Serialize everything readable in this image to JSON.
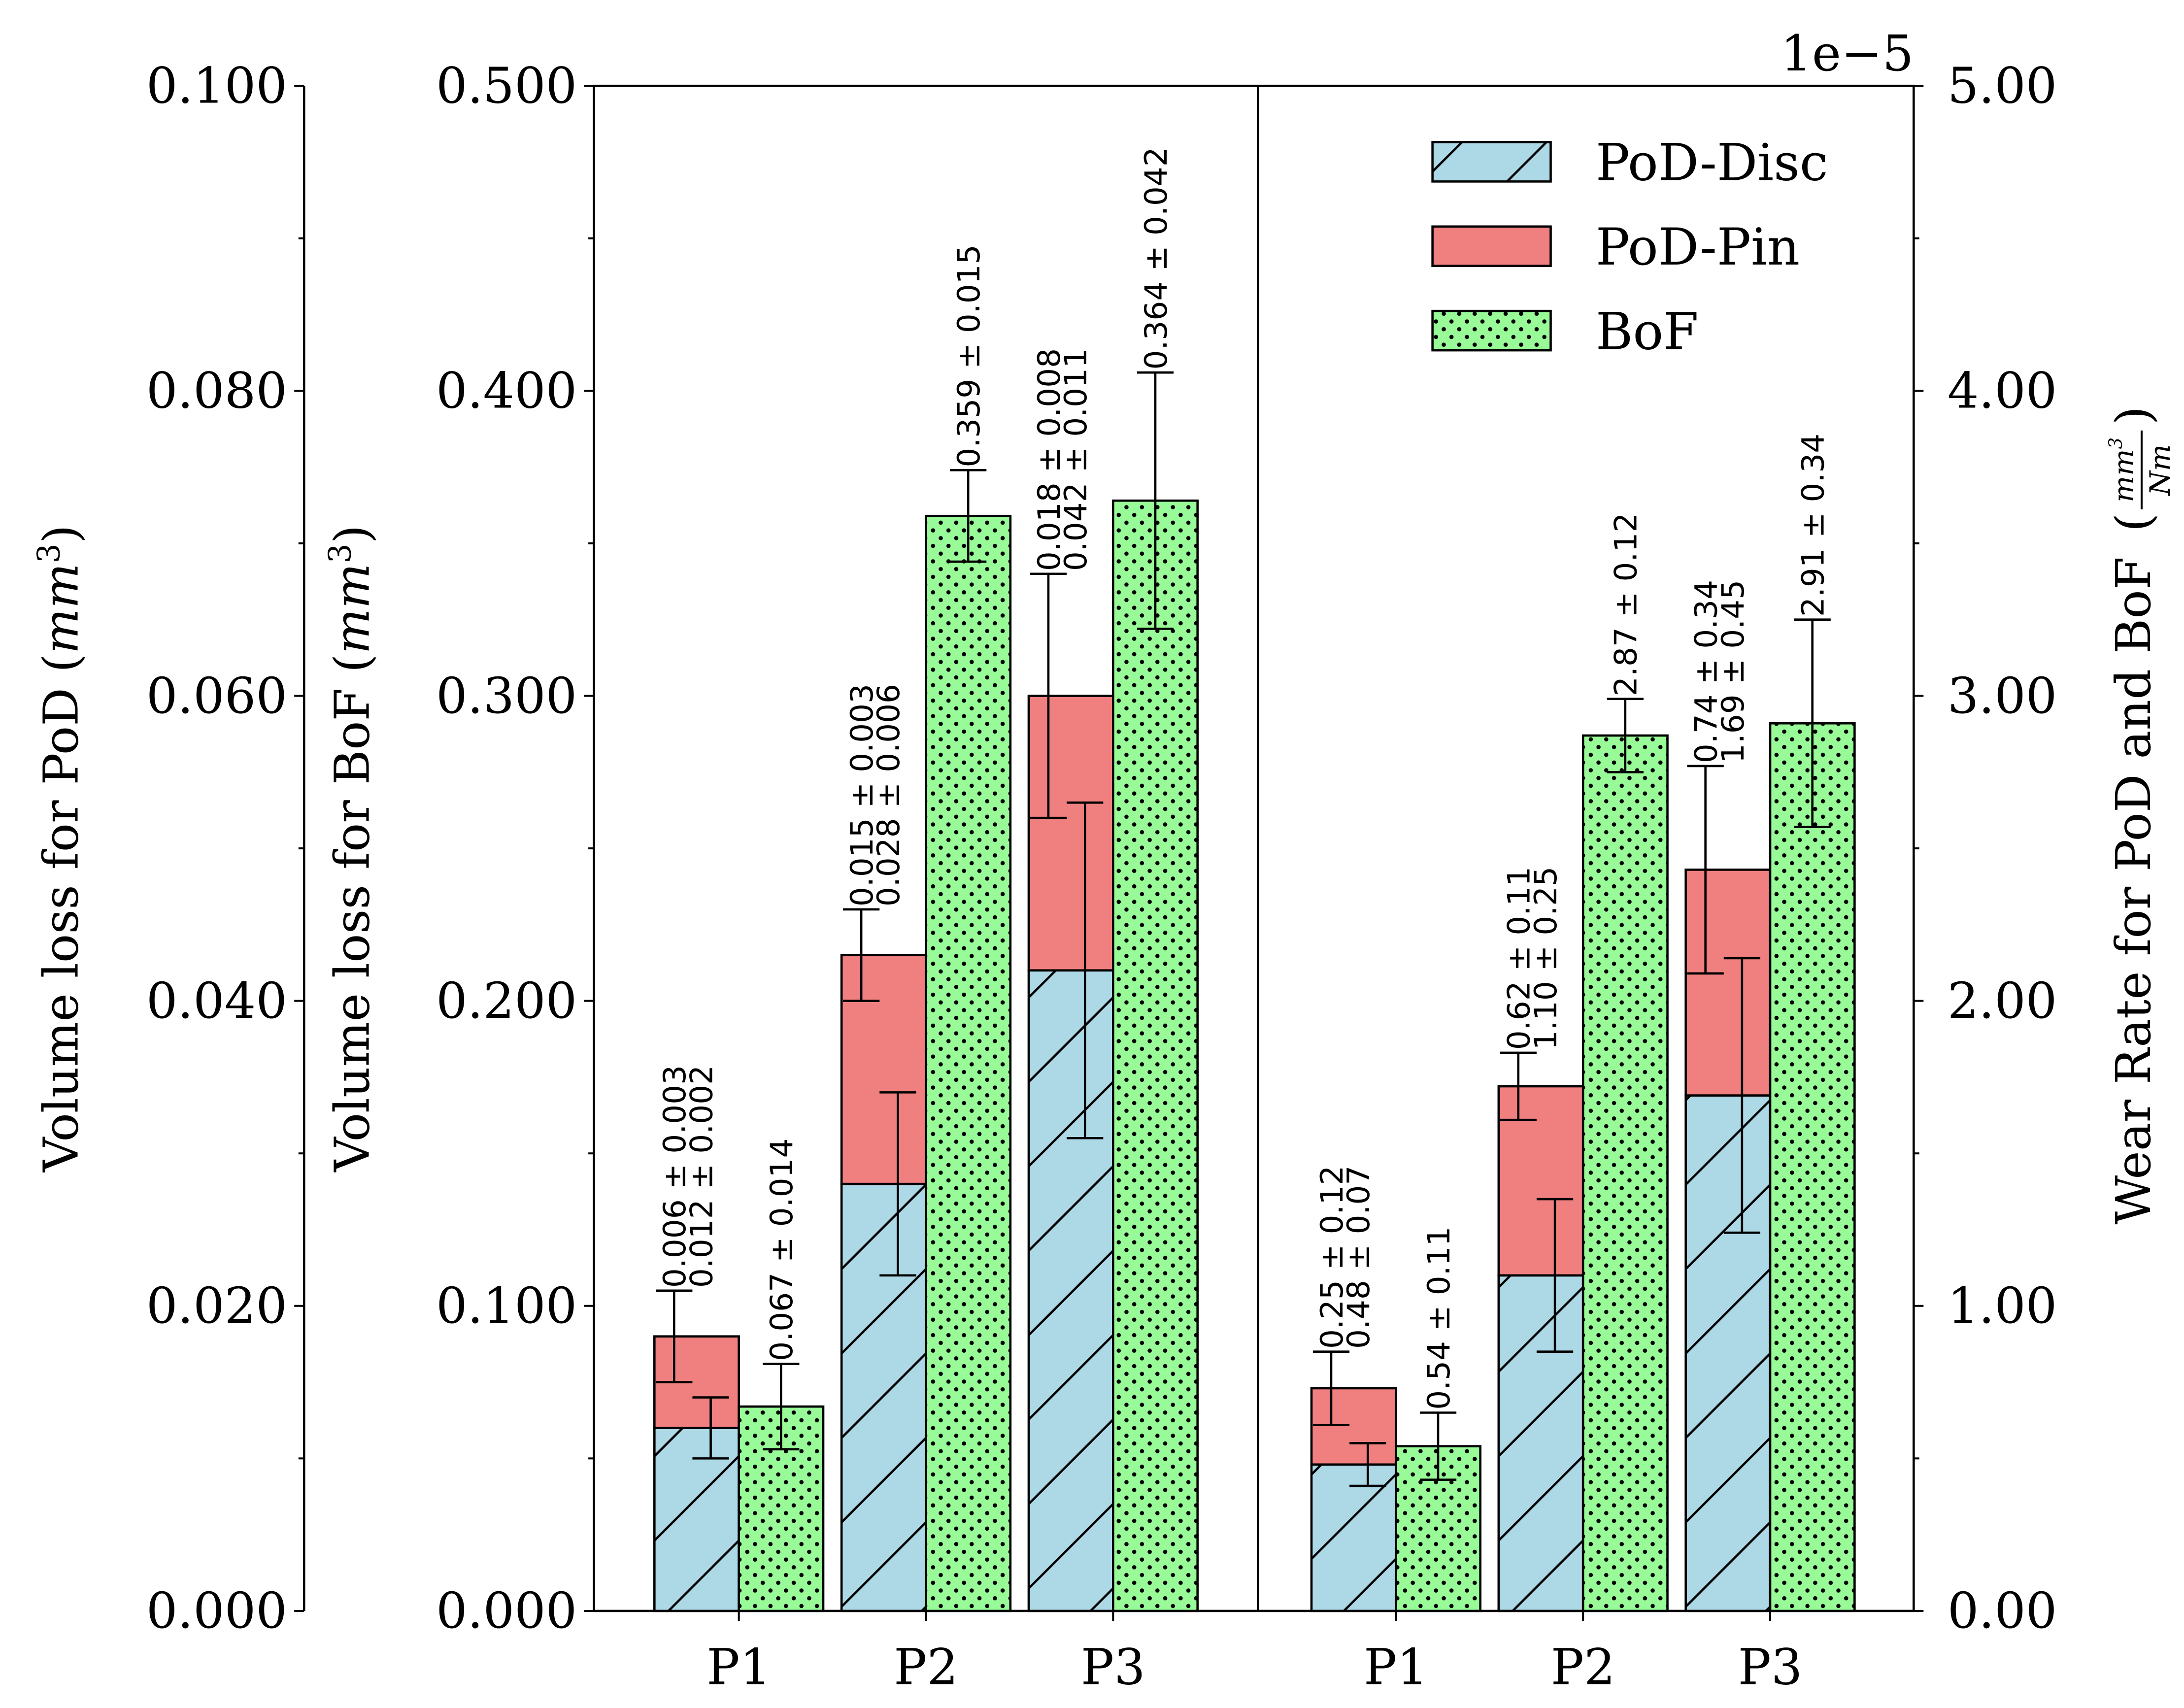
{
  "chart_data": {
    "type": "bar",
    "layout": "stacked PoD bars (Disc + Pin) beside BoF bars, two panels sharing a frame",
    "categories": [
      "P1",
      "P2",
      "P3"
    ],
    "legend": {
      "placement": "top-right",
      "entries": [
        {
          "name": "PoD-Disc",
          "color": "#add8e6",
          "hatch": "diagonal"
        },
        {
          "name": "PoD-Pin",
          "color": "#f08080",
          "hatch": "none"
        },
        {
          "name": "BoF",
          "color": "#98fb98",
          "hatch": "dots"
        }
      ]
    },
    "grid": false,
    "axes": {
      "pod_volume": {
        "label": "Volume loss for PoD",
        "unit": "mm",
        "unit_exp": "3",
        "ylim": [
          0,
          0.1
        ],
        "ticks": [
          "0.000",
          "0.020",
          "0.040",
          "0.060",
          "0.080",
          "0.100"
        ]
      },
      "bof_volume": {
        "label": "Volume loss for BoF",
        "unit": "mm",
        "unit_exp": "3",
        "ylim": [
          0,
          0.5
        ],
        "ticks": [
          "0.000",
          "0.100",
          "0.200",
          "0.300",
          "0.400",
          "0.500"
        ]
      },
      "wear_rate": {
        "label": "Wear Rate for PoD and BoF",
        "unit_num": "mm",
        "unit_exp": "3",
        "unit_den": "Nm",
        "ylim": [
          0,
          5.0
        ],
        "offset_text": "1e−5",
        "ticks": [
          "0.00",
          "1.00",
          "2.00",
          "3.00",
          "4.00",
          "5.00"
        ]
      }
    },
    "panels": [
      {
        "name": "volume-loss",
        "pod_axis": "pod_volume",
        "bof_axis": "bof_volume",
        "series": [
          {
            "name": "PoD-Disc",
            "values": [
              0.012,
              0.028,
              0.042
            ],
            "errors": [
              0.002,
              0.006,
              0.011
            ],
            "labels": [
              "0.012 ± 0.002",
              "0.028 ± 0.006",
              "0.042 ± 0.011"
            ]
          },
          {
            "name": "PoD-Pin",
            "values": [
              0.006,
              0.015,
              0.018
            ],
            "errors": [
              0.003,
              0.003,
              0.008
            ],
            "labels": [
              "0.006 ± 0.003",
              "0.015 ± 0.003",
              "0.018 ± 0.008"
            ]
          },
          {
            "name": "BoF",
            "values": [
              0.067,
              0.359,
              0.364
            ],
            "errors": [
              0.014,
              0.015,
              0.042
            ],
            "labels": [
              "0.067 ± 0.014",
              "0.359 ± 0.015",
              "0.364 ± 0.042"
            ]
          }
        ]
      },
      {
        "name": "wear-rate",
        "pod_axis": "wear_rate",
        "bof_axis": "wear_rate",
        "series": [
          {
            "name": "PoD-Disc",
            "values": [
              0.48,
              1.1,
              1.69
            ],
            "errors": [
              0.07,
              0.25,
              0.45
            ],
            "labels": [
              "0.48 ± 0.07",
              "1.10 ± 0.25",
              "1.69 ± 0.45"
            ]
          },
          {
            "name": "PoD-Pin",
            "values": [
              0.25,
              0.62,
              0.74
            ],
            "errors": [
              0.12,
              0.11,
              0.34
            ],
            "labels": [
              "0.25 ± 0.12",
              "0.62 ± 0.11",
              "0.74 ± 0.34"
            ]
          },
          {
            "name": "BoF",
            "values": [
              0.54,
              2.87,
              2.91
            ],
            "errors": [
              0.11,
              0.12,
              0.34
            ],
            "labels": [
              "0.54 ± 0.11",
              "2.87 ± 0.12",
              "2.91 ± 0.34"
            ]
          }
        ]
      }
    ]
  }
}
